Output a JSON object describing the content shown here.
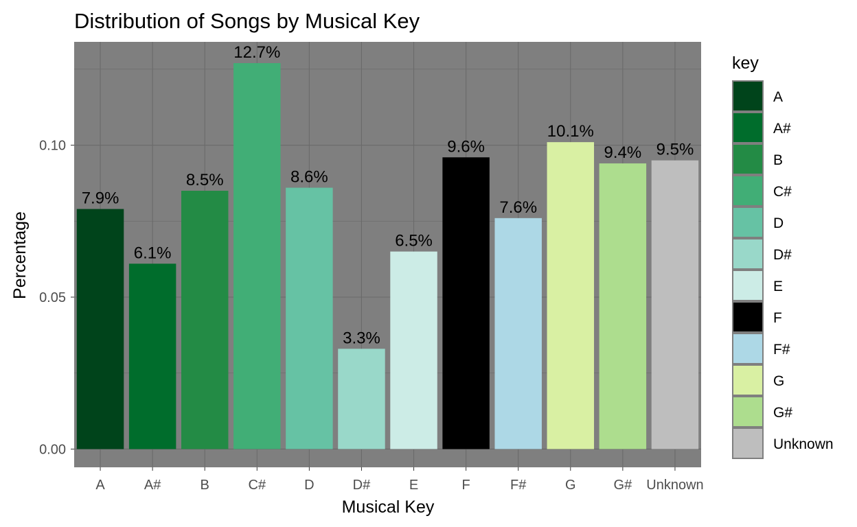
{
  "chart_data": {
    "type": "bar",
    "title": "Distribution of Songs by Musical Key",
    "xlabel": "Musical Key",
    "ylabel": "Percentage",
    "categories": [
      "A",
      "A#",
      "B",
      "C#",
      "D",
      "D#",
      "E",
      "F",
      "F#",
      "G",
      "G#",
      "Unknown"
    ],
    "values": [
      0.079,
      0.061,
      0.085,
      0.127,
      0.086,
      0.033,
      0.065,
      0.096,
      0.076,
      0.101,
      0.094,
      0.095
    ],
    "labels": [
      "7.9%",
      "6.1%",
      "8.5%",
      "12.7%",
      "8.6%",
      "3.3%",
      "6.5%",
      "9.6%",
      "7.6%",
      "10.1%",
      "9.4%",
      "9.5%"
    ],
    "colors": [
      "#00441b",
      "#006d2c",
      "#238b45",
      "#41ae76",
      "#66c2a4",
      "#99d8c9",
      "#ccece6",
      "#000000",
      "#add8e6",
      "#d9f0a3",
      "#addd8e",
      "#bebebe"
    ],
    "y_ticks": [
      0.0,
      0.05,
      0.1
    ],
    "y_tick_labels": [
      "0.00",
      "0.05",
      "0.10"
    ],
    "ylim": [
      -0.006,
      0.134
    ],
    "grid": true,
    "legend": {
      "title": "key",
      "position": "right",
      "entries": [
        "A",
        "A#",
        "B",
        "C#",
        "D",
        "D#",
        "E",
        "F",
        "F#",
        "G",
        "G#",
        "Unknown"
      ]
    },
    "panel_background": "#7f7f7f",
    "grid_color": "#6a6a6a"
  }
}
